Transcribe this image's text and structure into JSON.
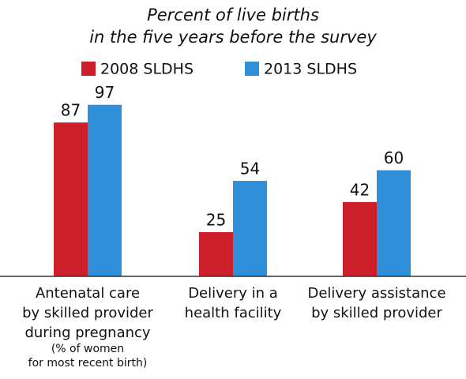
{
  "chart_data": {
    "type": "bar",
    "title": "Percent of  live births\nin the five years before the survey",
    "categories": [
      "Antenatal care\nby skilled provider\nduring pregnancy",
      "Delivery in a\nhealth facility",
      "Delivery assistance\nby skilled provider"
    ],
    "category_notes": [
      "(% of women\nfor most recent birth)",
      null,
      null
    ],
    "series": [
      {
        "name": "2008 SLDHS",
        "color": "#cc1f2a",
        "values": [
          87,
          25,
          42
        ]
      },
      {
        "name": "2013 SLDHS",
        "color": "#2f8fd8",
        "values": [
          97,
          54,
          60
        ]
      }
    ],
    "ylim": [
      0,
      100
    ]
  }
}
